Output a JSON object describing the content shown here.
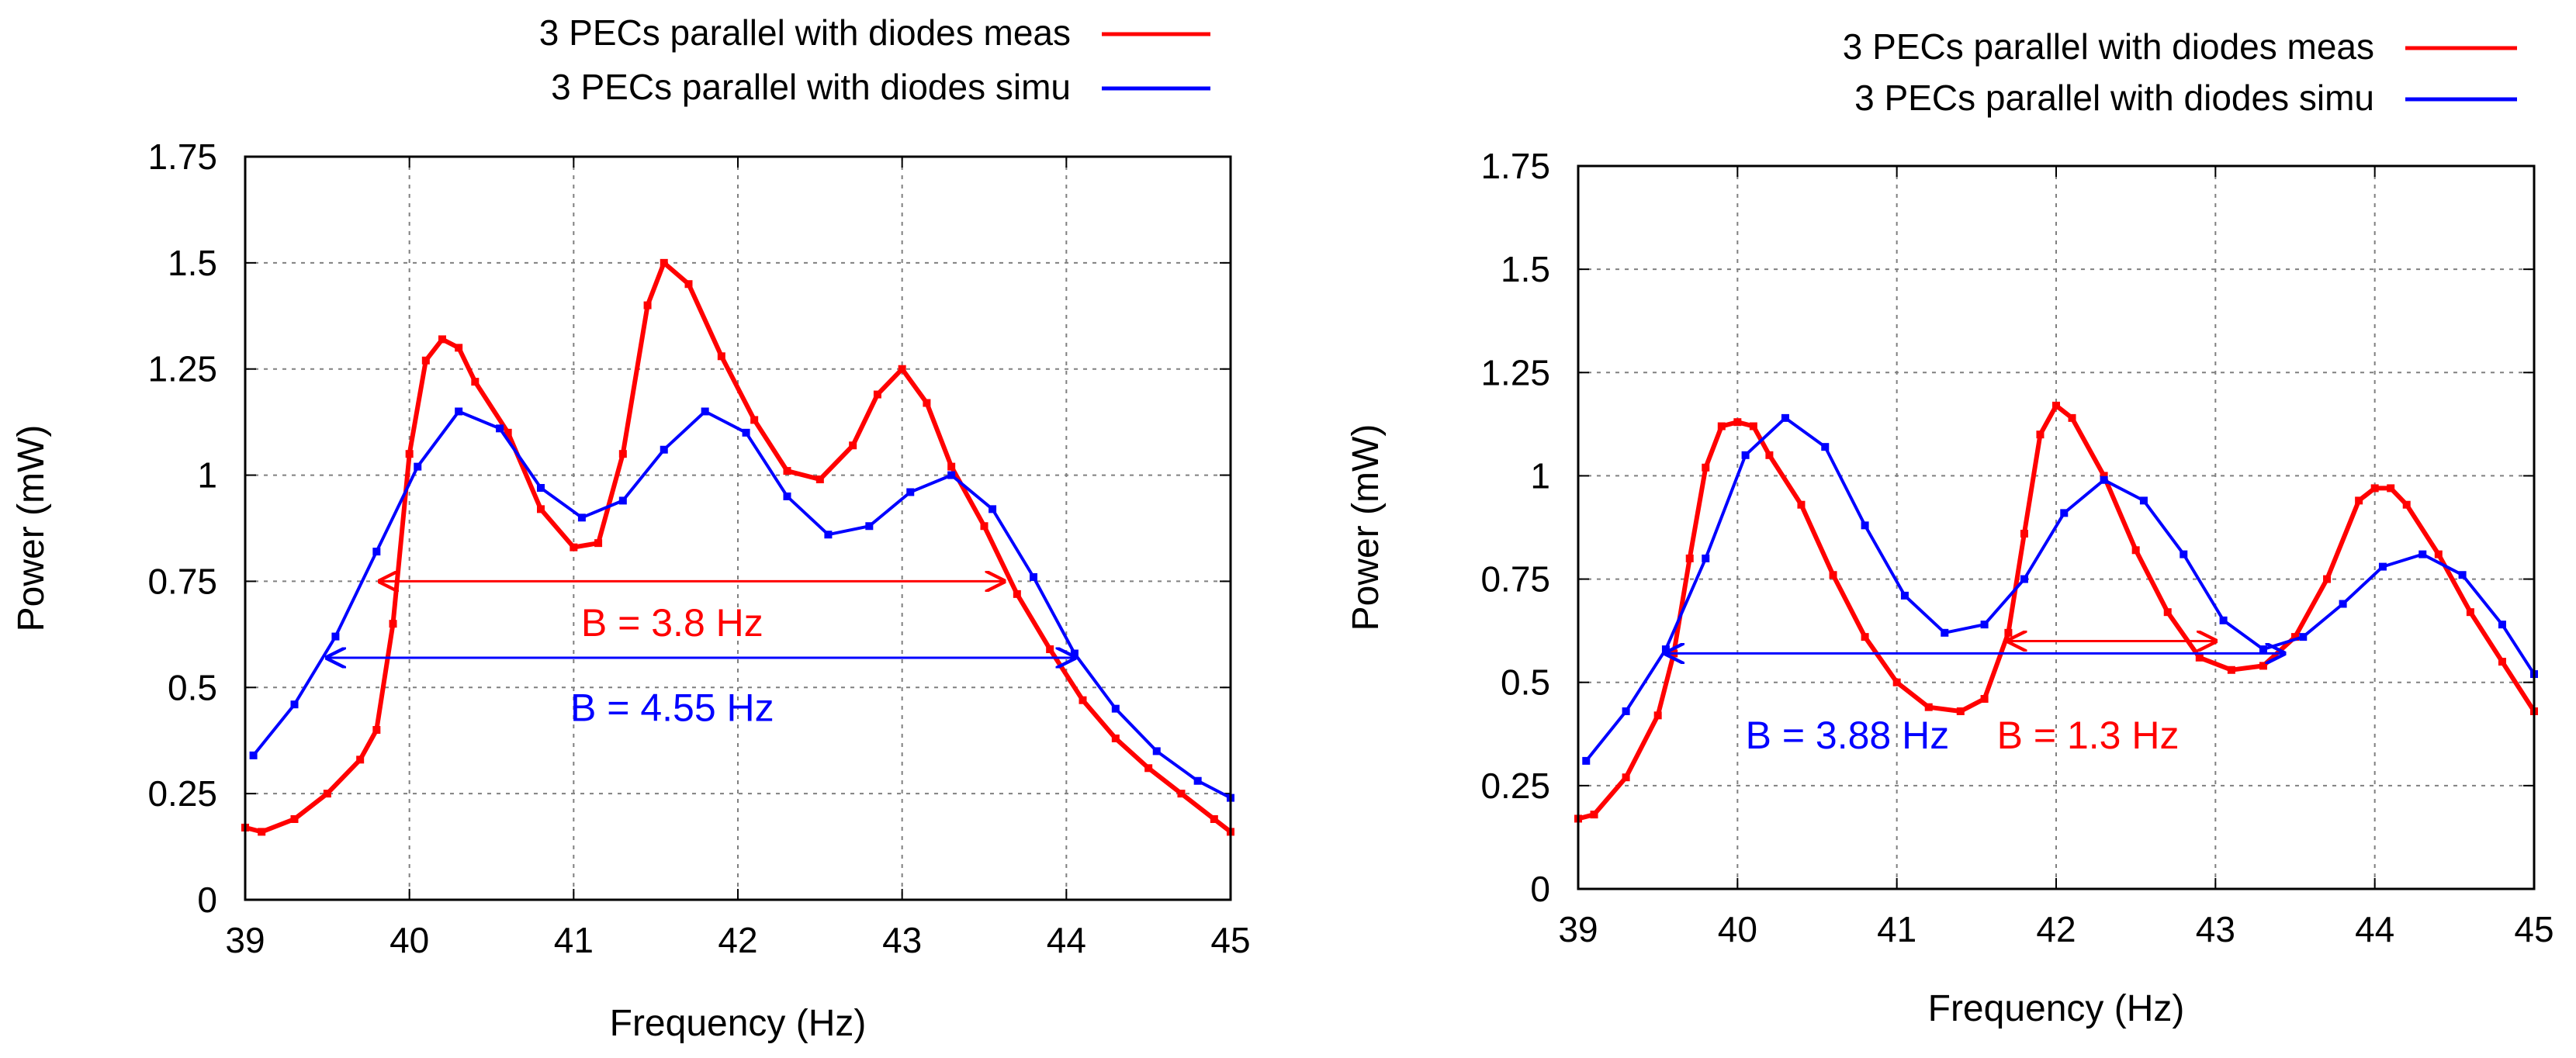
{
  "colors": {
    "meas": "#ff0000",
    "simu": "#0000ff",
    "grid": "#808080",
    "axis": "#000000"
  },
  "chart_data": [
    {
      "type": "line",
      "xlabel": "Frequency (Hz)",
      "ylabel": "Power (mW)",
      "xlim": [
        39,
        45
      ],
      "ylim": [
        0,
        1.75
      ],
      "xticks": [
        "39",
        "40",
        "41",
        "42",
        "43",
        "44",
        "45"
      ],
      "yticks": [
        "0",
        "0.25",
        "0.5",
        "0.75",
        "1",
        "1.25",
        "1.5",
        "1.75"
      ],
      "grid": true,
      "legend_position": "top-right outside",
      "series": [
        {
          "name": "3 PECs parallel with diodes meas",
          "color": "#ff0000",
          "points": [
            [
              39,
              0.17
            ],
            [
              39.1,
              0.16
            ],
            [
              39.3,
              0.19
            ],
            [
              39.5,
              0.25
            ],
            [
              39.7,
              0.33
            ],
            [
              39.8,
              0.4
            ],
            [
              39.9,
              0.65
            ],
            [
              40.0,
              1.05
            ],
            [
              40.1,
              1.27
            ],
            [
              40.2,
              1.32
            ],
            [
              40.3,
              1.3
            ],
            [
              40.4,
              1.22
            ],
            [
              40.6,
              1.1
            ],
            [
              40.8,
              0.92
            ],
            [
              41.0,
              0.83
            ],
            [
              41.15,
              0.84
            ],
            [
              41.3,
              1.05
            ],
            [
              41.45,
              1.4
            ],
            [
              41.55,
              1.5
            ],
            [
              41.7,
              1.45
            ],
            [
              41.9,
              1.28
            ],
            [
              42.1,
              1.13
            ],
            [
              42.3,
              1.01
            ],
            [
              42.5,
              0.99
            ],
            [
              42.7,
              1.07
            ],
            [
              42.85,
              1.19
            ],
            [
              43.0,
              1.25
            ],
            [
              43.15,
              1.17
            ],
            [
              43.3,
              1.02
            ],
            [
              43.5,
              0.88
            ],
            [
              43.7,
              0.72
            ],
            [
              43.9,
              0.59
            ],
            [
              44.1,
              0.47
            ],
            [
              44.3,
              0.38
            ],
            [
              44.5,
              0.31
            ],
            [
              44.7,
              0.25
            ],
            [
              44.9,
              0.19
            ],
            [
              45,
              0.16
            ]
          ]
        },
        {
          "name": "3 PECs parallel with diodes simu",
          "color": "#0000ff",
          "points": [
            [
              39.05,
              0.34
            ],
            [
              39.3,
              0.46
            ],
            [
              39.55,
              0.62
            ],
            [
              39.8,
              0.82
            ],
            [
              40.05,
              1.02
            ],
            [
              40.3,
              1.15
            ],
            [
              40.55,
              1.11
            ],
            [
              40.8,
              0.97
            ],
            [
              41.05,
              0.9
            ],
            [
              41.3,
              0.94
            ],
            [
              41.55,
              1.06
            ],
            [
              41.8,
              1.15
            ],
            [
              42.05,
              1.1
            ],
            [
              42.3,
              0.95
            ],
            [
              42.55,
              0.86
            ],
            [
              42.8,
              0.88
            ],
            [
              43.05,
              0.96
            ],
            [
              43.3,
              1.0
            ],
            [
              43.55,
              0.92
            ],
            [
              43.8,
              0.76
            ],
            [
              44.05,
              0.58
            ],
            [
              44.3,
              0.45
            ],
            [
              44.55,
              0.35
            ],
            [
              44.8,
              0.28
            ],
            [
              45,
              0.24
            ]
          ]
        }
      ],
      "annotations": [
        {
          "text": "B = 3.8 Hz",
          "color": "#ff0000",
          "x_from": 39.82,
          "x_to": 43.62,
          "y": 0.75,
          "label_x": 41.6,
          "label_y": 0.65
        },
        {
          "text": "B = 4.55 Hz",
          "color": "#0000ff",
          "x_from": 39.5,
          "x_to": 44.05,
          "y": 0.57,
          "label_x": 41.6,
          "label_y": 0.45
        }
      ]
    },
    {
      "type": "line",
      "xlabel": "Frequency (Hz)",
      "ylabel": "Power (mW)",
      "xlim": [
        39,
        45
      ],
      "ylim": [
        0,
        1.75
      ],
      "xticks": [
        "39",
        "40",
        "41",
        "42",
        "43",
        "44",
        "45"
      ],
      "yticks": [
        "0",
        "0.25",
        "0.5",
        "0.75",
        "1",
        "1.25",
        "1.5",
        "1.75"
      ],
      "grid": true,
      "legend_position": "top-right outside",
      "series": [
        {
          "name": "3 PECs parallel with diodes meas",
          "color": "#ff0000",
          "points": [
            [
              39,
              0.17
            ],
            [
              39.1,
              0.18
            ],
            [
              39.3,
              0.27
            ],
            [
              39.5,
              0.42
            ],
            [
              39.6,
              0.57
            ],
            [
              39.7,
              0.8
            ],
            [
              39.8,
              1.02
            ],
            [
              39.9,
              1.12
            ],
            [
              40.0,
              1.13
            ],
            [
              40.1,
              1.12
            ],
            [
              40.2,
              1.05
            ],
            [
              40.4,
              0.93
            ],
            [
              40.6,
              0.76
            ],
            [
              40.8,
              0.61
            ],
            [
              41.0,
              0.5
            ],
            [
              41.2,
              0.44
            ],
            [
              41.4,
              0.43
            ],
            [
              41.55,
              0.46
            ],
            [
              41.7,
              0.62
            ],
            [
              41.8,
              0.86
            ],
            [
              41.9,
              1.1
            ],
            [
              42.0,
              1.17
            ],
            [
              42.1,
              1.14
            ],
            [
              42.3,
              1.0
            ],
            [
              42.5,
              0.82
            ],
            [
              42.7,
              0.67
            ],
            [
              42.9,
              0.56
            ],
            [
              43.1,
              0.53
            ],
            [
              43.3,
              0.54
            ],
            [
              43.5,
              0.61
            ],
            [
              43.7,
              0.75
            ],
            [
              43.9,
              0.94
            ],
            [
              44.0,
              0.97
            ],
            [
              44.1,
              0.97
            ],
            [
              44.2,
              0.93
            ],
            [
              44.4,
              0.81
            ],
            [
              44.6,
              0.67
            ],
            [
              44.8,
              0.55
            ],
            [
              45,
              0.43
            ]
          ]
        },
        {
          "name": "3 PECs parallel with diodes simu",
          "color": "#0000ff",
          "points": [
            [
              39.05,
              0.31
            ],
            [
              39.3,
              0.43
            ],
            [
              39.55,
              0.58
            ],
            [
              39.8,
              0.8
            ],
            [
              40.05,
              1.05
            ],
            [
              40.3,
              1.14
            ],
            [
              40.55,
              1.07
            ],
            [
              40.8,
              0.88
            ],
            [
              41.05,
              0.71
            ],
            [
              41.3,
              0.62
            ],
            [
              41.55,
              0.64
            ],
            [
              41.8,
              0.75
            ],
            [
              42.05,
              0.91
            ],
            [
              42.3,
              0.99
            ],
            [
              42.55,
              0.94
            ],
            [
              42.8,
              0.81
            ],
            [
              43.05,
              0.65
            ],
            [
              43.3,
              0.58
            ],
            [
              43.55,
              0.61
            ],
            [
              43.8,
              0.69
            ],
            [
              44.05,
              0.78
            ],
            [
              44.3,
              0.81
            ],
            [
              44.55,
              0.76
            ],
            [
              44.8,
              0.64
            ],
            [
              45,
              0.52
            ]
          ]
        }
      ],
      "annotations": [
        {
          "text": "B = 3.88 Hz",
          "color": "#0000ff",
          "x_from": 39.55,
          "x_to": 43.43,
          "y": 0.57,
          "label_x": 40.05,
          "label_y": 0.37
        },
        {
          "text": "B = 1.3 Hz",
          "color": "#ff0000",
          "x_from": 41.7,
          "x_to": 43.0,
          "y": 0.6,
          "label_x": 42.2,
          "label_y": 0.37
        }
      ]
    }
  ]
}
